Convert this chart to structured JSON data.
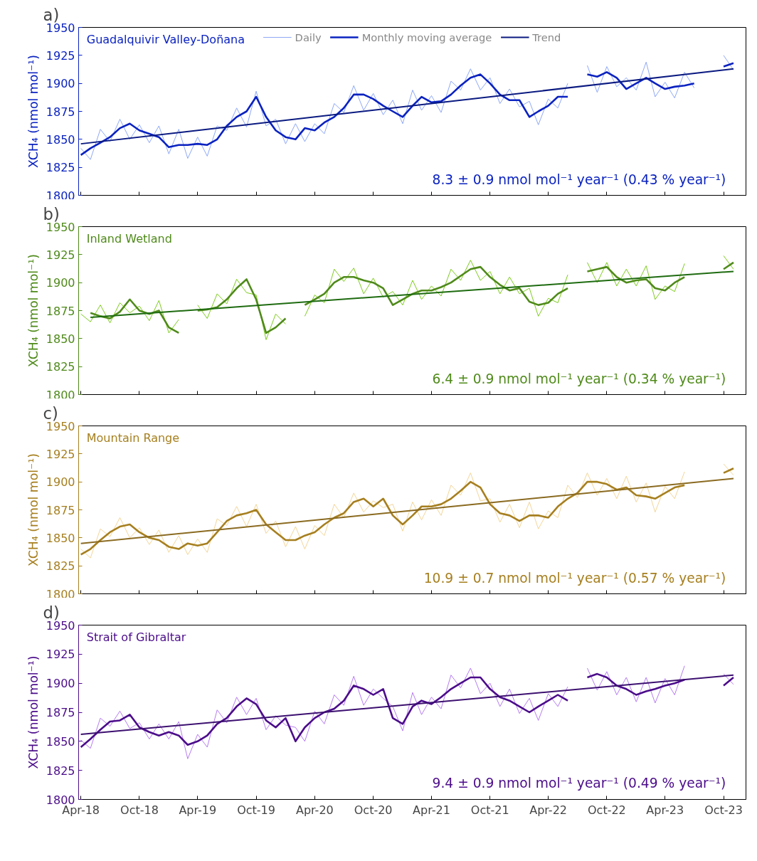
{
  "chart_data": [
    {
      "type": "line",
      "title": "a)",
      "ylabel": "XCH₄ (nmol mol⁻¹)",
      "xlim": [
        "2018-03-25",
        "2023-12-10"
      ],
      "ylim": [
        1800,
        1950
      ],
      "yticks": [
        1800,
        1825,
        1850,
        1875,
        1900,
        1925,
        1950
      ],
      "tick_labels": "y",
      "grid": false,
      "legend": "top",
      "xticks": [
        {
          "value": "2018-04-01",
          "label": null
        },
        {
          "value": "2018-10-01",
          "label": null
        },
        {
          "value": "2019-04-01",
          "label": null
        },
        {
          "value": "2019-10-01",
          "label": null
        },
        {
          "value": "2020-04-01",
          "label": null
        },
        {
          "value": "2020-10-01",
          "label": null
        },
        {
          "value": "2021-04-01",
          "label": null
        },
        {
          "value": "2021-10-01",
          "label": null
        },
        {
          "value": "2022-04-01",
          "label": null
        },
        {
          "value": "2022-10-01",
          "label": null
        },
        {
          "value": "2023-04-01",
          "label": null
        },
        {
          "value": "2023-10-01",
          "label": null
        }
      ],
      "x": [
        "2018-04",
        "2018-05",
        "2018-06",
        "2018-07",
        "2018-08",
        "2018-09",
        "2018-10",
        "2018-11",
        "2018-12",
        "2019-01",
        "2019-02",
        "2019-03",
        "2019-04",
        "2019-05",
        "2019-06",
        "2019-07",
        "2019-08",
        "2019-09",
        "2019-10",
        "2019-11",
        "2019-12",
        "2020-01",
        "2020-02",
        "2020-03",
        "2020-04",
        "2020-05",
        "2020-06",
        "2020-07",
        "2020-08",
        "2020-09",
        "2020-10",
        "2020-11",
        "2020-12",
        "2021-01",
        "2021-02",
        "2021-03",
        "2021-04",
        "2021-05",
        "2021-06",
        "2021-07",
        "2021-08",
        "2021-09",
        "2021-10",
        "2021-11",
        "2021-12",
        "2022-01",
        "2022-02",
        "2022-03",
        "2022-04",
        "2022-05",
        "2022-06",
        "2022-07",
        "2022-08",
        "2022-09",
        "2022-10",
        "2022-11",
        "2022-12",
        "2023-01",
        "2023-02",
        "2023-03",
        "2023-04",
        "2023-05",
        "2023-06",
        "2023-07",
        "2023-08",
        "2023-09",
        "2023-10",
        "2023-11"
      ],
      "series": [
        {
          "name": "Daily",
          "color": "#8ea8f5",
          "values": [
            1842,
            1832,
            1859,
            1848,
            1868,
            1850,
            1863,
            1847,
            1862,
            1837,
            1859,
            1833,
            1852,
            1835,
            1862,
            1858,
            1878,
            1861,
            1893,
            1862,
            1868,
            1846,
            1864,
            1848,
            1864,
            1855,
            1882,
            1874,
            1898,
            1876,
            1891,
            1872,
            1885,
            1864,
            1894,
            1876,
            1889,
            1874,
            1902,
            1894,
            1913,
            1894,
            1905,
            1882,
            1895,
            1879,
            1884,
            1863,
            1886,
            1878,
            1900,
            null,
            1916,
            1892,
            1915,
            1897,
            1905,
            1894,
            1919,
            1888,
            1901,
            1887,
            1910,
            1896,
            null,
            null,
            1925,
            1912
          ]
        },
        {
          "name": "Monthly moving average",
          "color": "#0a22c0",
          "values": [
            1836,
            1842,
            1847,
            1852,
            1860,
            1864,
            1858,
            1855,
            1852,
            1843,
            1845,
            1845,
            1846,
            1845,
            1850,
            1862,
            1870,
            1875,
            1888,
            1870,
            1858,
            1852,
            1850,
            1860,
            1858,
            1865,
            1870,
            1878,
            1890,
            1890,
            1886,
            1880,
            1875,
            1870,
            1880,
            1888,
            1883,
            1884,
            1890,
            1898,
            1905,
            1908,
            1900,
            1890,
            1885,
            1885,
            1870,
            1875,
            1880,
            1888,
            1888,
            null,
            1908,
            1906,
            1910,
            1905,
            1895,
            1900,
            1905,
            1900,
            1895,
            1897,
            1898,
            1900,
            null,
            null,
            1915,
            1918
          ]
        },
        {
          "name": "Trend",
          "color": "#0a1a80",
          "x": [
            "2018-04",
            "2023-11"
          ],
          "values": [
            1846,
            1913
          ]
        }
      ],
      "annotations": [
        "Guadalquivir Valley-Doñana",
        "8.3 ± 0.9 nmol mol⁻¹ year⁻¹ (0.43 % year⁻¹)"
      ]
    },
    {
      "type": "line",
      "title": "b)",
      "ylabel": "XCH₄ (nmol mol⁻¹)",
      "xlim": [
        "2018-03-25",
        "2023-12-10"
      ],
      "ylim": [
        1800,
        1950
      ],
      "yticks": [
        1800,
        1825,
        1850,
        1875,
        1900,
        1925,
        1950
      ],
      "tick_labels": "y",
      "grid": false,
      "xticks": [
        {
          "value": "2018-04-01",
          "label": null
        },
        {
          "value": "2018-10-01",
          "label": null
        },
        {
          "value": "2019-04-01",
          "label": null
        },
        {
          "value": "2019-10-01",
          "label": null
        },
        {
          "value": "2020-04-01",
          "label": null
        },
        {
          "value": "2020-10-01",
          "label": null
        },
        {
          "value": "2021-04-01",
          "label": null
        },
        {
          "value": "2021-10-01",
          "label": null
        },
        {
          "value": "2022-04-01",
          "label": null
        },
        {
          "value": "2022-10-01",
          "label": null
        },
        {
          "value": "2023-04-01",
          "label": null
        },
        {
          "value": "2023-10-01",
          "label": null
        }
      ],
      "x": [
        "2018-04",
        "2018-05",
        "2018-06",
        "2018-07",
        "2018-08",
        "2018-09",
        "2018-10",
        "2018-11",
        "2018-12",
        "2019-01",
        "2019-02",
        "2019-03",
        "2019-04",
        "2019-05",
        "2019-06",
        "2019-07",
        "2019-08",
        "2019-09",
        "2019-10",
        "2019-11",
        "2019-12",
        "2020-01",
        "2020-02",
        "2020-03",
        "2020-04",
        "2020-05",
        "2020-06",
        "2020-07",
        "2020-08",
        "2020-09",
        "2020-10",
        "2020-11",
        "2020-12",
        "2021-01",
        "2021-02",
        "2021-03",
        "2021-04",
        "2021-05",
        "2021-06",
        "2021-07",
        "2021-08",
        "2021-09",
        "2021-10",
        "2021-11",
        "2021-12",
        "2022-01",
        "2022-02",
        "2022-03",
        "2022-04",
        "2022-05",
        "2022-06",
        "2022-07",
        "2022-08",
        "2022-09",
        "2022-10",
        "2022-11",
        "2022-12",
        "2023-01",
        "2023-02",
        "2023-03",
        "2023-04",
        "2023-05",
        "2023-06",
        "2023-07",
        "2023-08",
        "2023-09",
        "2023-10",
        "2023-11"
      ],
      "series": [
        {
          "color": "#7ecb1e",
          "values": [
            1872,
            1865,
            1880,
            1864,
            1882,
            1873,
            1879,
            1866,
            1884,
            1855,
            1867,
            null,
            1880,
            1868,
            1890,
            1881,
            1903,
            1891,
            1889,
            1849,
            1872,
            1863,
            null,
            1870,
            1889,
            1882,
            1912,
            1901,
            1913,
            1890,
            1904,
            1887,
            1892,
            1880,
            1902,
            1885,
            1897,
            1888,
            1912,
            1902,
            1920,
            1902,
            1910,
            1890,
            1905,
            1890,
            1895,
            1870,
            1886,
            1882,
            1907,
            null,
            1918,
            1900,
            1918,
            1897,
            1912,
            1897,
            1915,
            1885,
            1897,
            1892,
            1917,
            null,
            null,
            null,
            1924,
            1912
          ]
        },
        {
          "color": "#4f8a1a",
          "values": [
            null,
            1873,
            1870,
            1868,
            1874,
            1885,
            1875,
            1872,
            1875,
            1860,
            1855,
            null,
            1875,
            1876,
            1878,
            1885,
            1895,
            1903,
            1885,
            1855,
            1860,
            1868,
            null,
            1880,
            1885,
            1890,
            1900,
            1905,
            1905,
            1902,
            1900,
            1895,
            1880,
            1885,
            1890,
            1893,
            1893,
            1896,
            1900,
            1906,
            1912,
            1914,
            1905,
            1898,
            1893,
            1895,
            1883,
            1880,
            1882,
            1890,
            1895,
            null,
            1910,
            1912,
            1914,
            1905,
            1900,
            1902,
            1903,
            1895,
            1893,
            1900,
            1905,
            null,
            null,
            null,
            1912,
            1918
          ]
        },
        {
          "color": "#1e6b10",
          "x": [
            "2018-05",
            "2023-11"
          ],
          "values": [
            1869,
            1910
          ]
        }
      ],
      "annotations": [
        "Inland Wetland",
        "6.4 ± 0.9 nmol mol⁻¹ year⁻¹ (0.34 % year⁻¹)"
      ]
    },
    {
      "type": "line",
      "title": "c)",
      "ylabel": "XCH₄ (nmol mol⁻¹)",
      "xlim": [
        "2018-03-25",
        "2023-12-10"
      ],
      "ylim": [
        1800,
        1950
      ],
      "yticks": [
        1800,
        1825,
        1850,
        1875,
        1900,
        1925,
        1950
      ],
      "tick_labels": "y",
      "grid": false,
      "xticks": [
        {
          "value": "2018-04-01",
          "label": null
        },
        {
          "value": "2018-10-01",
          "label": null
        },
        {
          "value": "2019-04-01",
          "label": null
        },
        {
          "value": "2019-10-01",
          "label": null
        },
        {
          "value": "2020-04-01",
          "label": null
        },
        {
          "value": "2020-10-01",
          "label": null
        },
        {
          "value": "2021-04-01",
          "label": null
        },
        {
          "value": "2021-10-01",
          "label": null
        },
        {
          "value": "2022-04-01",
          "label": null
        },
        {
          "value": "2022-10-01",
          "label": null
        },
        {
          "value": "2023-04-01",
          "label": null
        },
        {
          "value": "2023-10-01",
          "label": null
        }
      ],
      "x": [
        "2018-04",
        "2018-05",
        "2018-06",
        "2018-07",
        "2018-08",
        "2018-09",
        "2018-10",
        "2018-11",
        "2018-12",
        "2019-01",
        "2019-02",
        "2019-03",
        "2019-04",
        "2019-05",
        "2019-06",
        "2019-07",
        "2019-08",
        "2019-09",
        "2019-10",
        "2019-11",
        "2019-12",
        "2020-01",
        "2020-02",
        "2020-03",
        "2020-04",
        "2020-05",
        "2020-06",
        "2020-07",
        "2020-08",
        "2020-09",
        "2020-10",
        "2020-11",
        "2020-12",
        "2021-01",
        "2021-02",
        "2021-03",
        "2021-04",
        "2021-05",
        "2021-06",
        "2021-07",
        "2021-08",
        "2021-09",
        "2021-10",
        "2021-11",
        "2021-12",
        "2022-01",
        "2022-02",
        "2022-03",
        "2022-04",
        "2022-05",
        "2022-06",
        "2022-07",
        "2022-08",
        "2022-09",
        "2022-10",
        "2022-11",
        "2022-12",
        "2023-01",
        "2023-02",
        "2023-03",
        "2023-04",
        "2023-05",
        "2023-06",
        "2023-07",
        "2023-08",
        "2023-09",
        "2023-10",
        "2023-11"
      ],
      "series": [
        {
          "color": "#f3d598",
          "values": [
            1840,
            1832,
            1858,
            1851,
            1868,
            1850,
            1859,
            1844,
            1857,
            1837,
            1852,
            1835,
            1849,
            1837,
            1867,
            1861,
            1878,
            1860,
            1880,
            1854,
            1865,
            1842,
            1860,
            1840,
            1861,
            1852,
            1880,
            1868,
            1890,
            1873,
            1883,
            1877,
            1880,
            1856,
            1882,
            1866,
            1884,
            1870,
            1897,
            1888,
            1908,
            1883,
            1885,
            1864,
            1880,
            1859,
            1882,
            1858,
            1874,
            1868,
            1897,
            1886,
            1908,
            1888,
            1903,
            1885,
            1905,
            1882,
            1899,
            1873,
            1896,
            1885,
            1909,
            null,
            null,
            null,
            1916,
            1906
          ]
        },
        {
          "color": "#a67f1f",
          "values": [
            1835,
            1840,
            1848,
            1855,
            1860,
            1862,
            1855,
            1850,
            1848,
            1842,
            1840,
            1845,
            1843,
            1845,
            1855,
            1865,
            1870,
            1872,
            1875,
            1862,
            1855,
            1848,
            1848,
            1852,
            1855,
            1862,
            1868,
            1872,
            1882,
            1885,
            1878,
            1885,
            1870,
            1862,
            1870,
            1878,
            1878,
            1880,
            1885,
            1892,
            1900,
            1895,
            1880,
            1872,
            1870,
            1865,
            1870,
            1870,
            1868,
            1878,
            1885,
            1890,
            1900,
            1900,
            1898,
            1893,
            1895,
            1888,
            1887,
            1885,
            1890,
            1895,
            1897,
            null,
            null,
            null,
            1908,
            1912
          ]
        },
        {
          "color": "#8a6a20",
          "x": [
            "2018-04",
            "2023-11"
          ],
          "values": [
            1845,
            1903
          ]
        }
      ],
      "annotations": [
        "Mountain Range",
        "10.9 ± 0.7 nmol mol⁻¹ year⁻¹ (0.57 % year⁻¹)"
      ]
    },
    {
      "type": "line",
      "title": "d)",
      "ylabel": "XCH₄ (nmol mol⁻¹)",
      "xlim": [
        "2018-03-25",
        "2023-12-10"
      ],
      "ylim": [
        1800,
        1950
      ],
      "yticks": [
        1800,
        1825,
        1850,
        1875,
        1900,
        1925,
        1950
      ],
      "grid": false,
      "xticks": [
        {
          "value": "2018-04-01",
          "label": "Apr-18"
        },
        {
          "value": "2018-10-01",
          "label": "Oct-18"
        },
        {
          "value": "2019-04-01",
          "label": "Apr-19"
        },
        {
          "value": "2019-10-01",
          "label": "Oct-19"
        },
        {
          "value": "2020-04-01",
          "label": "Apr-20"
        },
        {
          "value": "2020-10-01",
          "label": "Oct-20"
        },
        {
          "value": "2021-04-01",
          "label": "Apr-21"
        },
        {
          "value": "2021-10-01",
          "label": "Oct-21"
        },
        {
          "value": "2022-04-01",
          "label": "Apr-22"
        },
        {
          "value": "2022-10-01",
          "label": "Oct-22"
        },
        {
          "value": "2023-04-01",
          "label": "Apr-23"
        },
        {
          "value": "2023-10-01",
          "label": "Oct-23"
        }
      ],
      "x": [
        "2018-04",
        "2018-05",
        "2018-06",
        "2018-07",
        "2018-08",
        "2018-09",
        "2018-10",
        "2018-11",
        "2018-12",
        "2019-01",
        "2019-02",
        "2019-03",
        "2019-04",
        "2019-05",
        "2019-06",
        "2019-07",
        "2019-08",
        "2019-09",
        "2019-10",
        "2019-11",
        "2019-12",
        "2020-01",
        "2020-02",
        "2020-03",
        "2020-04",
        "2020-05",
        "2020-06",
        "2020-07",
        "2020-08",
        "2020-09",
        "2020-10",
        "2020-11",
        "2020-12",
        "2021-01",
        "2021-02",
        "2021-03",
        "2021-04",
        "2021-05",
        "2021-06",
        "2021-07",
        "2021-08",
        "2021-09",
        "2021-10",
        "2021-11",
        "2021-12",
        "2022-01",
        "2022-02",
        "2022-03",
        "2022-04",
        "2022-05",
        "2022-06",
        "2022-07",
        "2022-08",
        "2022-09",
        "2022-10",
        "2022-11",
        "2022-12",
        "2023-01",
        "2023-02",
        "2023-03",
        "2023-04",
        "2023-05",
        "2023-06",
        "2023-07",
        "2023-08",
        "2023-09",
        "2023-10",
        "2023-11"
      ],
      "series": [
        {
          "color": "#b57cf0",
          "values": [
            1851,
            1844,
            1870,
            1863,
            1876,
            1861,
            1866,
            1852,
            1865,
            1852,
            1867,
            1835,
            1856,
            1845,
            1877,
            1866,
            1888,
            1873,
            1887,
            1860,
            1872,
            1864,
            1862,
            1850,
            1876,
            1865,
            1890,
            1881,
            1906,
            1881,
            1895,
            1887,
            1880,
            1859,
            1892,
            1873,
            1888,
            1878,
            1907,
            1896,
            1913,
            1891,
            1900,
            1880,
            1895,
            1874,
            1887,
            1868,
            1891,
            1880,
            1897,
            null,
            1913,
            1894,
            1910,
            1890,
            1905,
            1884,
            1905,
            1883,
            1904,
            1890,
            1915,
            null,
            null,
            null,
            1908,
            1899
          ]
        },
        {
          "color": "#4b0c8a",
          "values": [
            1845,
            1852,
            1860,
            1867,
            1868,
            1873,
            1862,
            1858,
            1855,
            1858,
            1855,
            1847,
            1850,
            1855,
            1865,
            1870,
            1880,
            1887,
            1882,
            1868,
            1862,
            1870,
            1850,
            1862,
            1870,
            1875,
            1878,
            1885,
            1898,
            1895,
            1890,
            1895,
            1870,
            1865,
            1880,
            1885,
            1882,
            1888,
            1895,
            1900,
            1905,
            1905,
            1895,
            1888,
            1885,
            1880,
            1875,
            1880,
            1885,
            1890,
            1885,
            null,
            1905,
            1908,
            1905,
            1898,
            1895,
            1890,
            1893,
            1895,
            1898,
            1900,
            1903,
            null,
            null,
            null,
            1898,
            1905
          ]
        },
        {
          "color": "#3c1070",
          "x": [
            "2018-04",
            "2023-11"
          ],
          "values": [
            1856,
            1907
          ]
        }
      ],
      "annotations": [
        "Strait of Gibraltar",
        "9.4 ± 0.9 nmol mol⁻¹ year⁻¹ (0.49 % year⁻¹)"
      ]
    }
  ]
}
